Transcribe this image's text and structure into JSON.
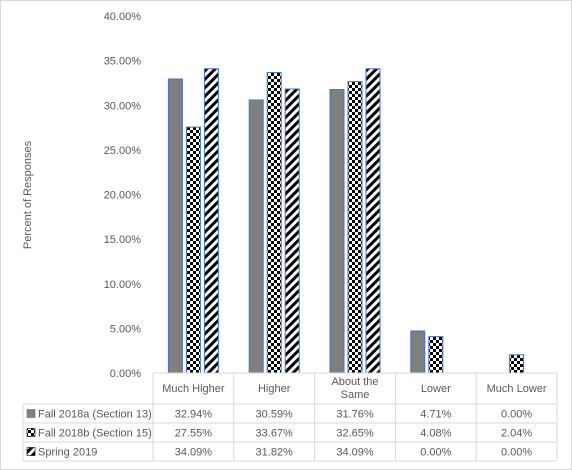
{
  "chart_data": {
    "type": "bar",
    "title": "",
    "xlabel": "",
    "ylabel": "Percent of Responses",
    "ylim": [
      0,
      40
    ],
    "yticks": [
      "0.00%",
      "5.00%",
      "10.00%",
      "15.00%",
      "20.00%",
      "25.00%",
      "30.00%",
      "35.00%",
      "40.00%"
    ],
    "grid": false,
    "legend": "data-table-left",
    "categories": [
      "Much Higher",
      "Higher",
      "About the Same",
      "Lower",
      "Much Lower"
    ],
    "series": [
      {
        "name": "Fall 2018a (Section 13)",
        "values": [
          32.94,
          30.59,
          31.76,
          4.71,
          0.0
        ],
        "labels": [
          "32.94%",
          "30.59%",
          "31.76%",
          "4.71%",
          "0.00%"
        ],
        "fill": "solid-gray",
        "color": "#7f7f7f"
      },
      {
        "name": "Fall 2018b (Section 15)",
        "values": [
          27.55,
          33.67,
          32.65,
          4.08,
          2.04
        ],
        "labels": [
          "27.55%",
          "33.67%",
          "32.65%",
          "4.08%",
          "2.04%"
        ],
        "fill": "checkerboard",
        "color": "#000000"
      },
      {
        "name": "Spring 2019",
        "values": [
          34.09,
          31.82,
          34.09,
          0.0,
          0.0
        ],
        "labels": [
          "34.09%",
          "31.82%",
          "34.09%",
          "0.00%",
          "0.00%"
        ],
        "fill": "diagonal-stripes",
        "color": "#000000"
      }
    ]
  },
  "colors": {
    "bar_outline": "#4472c4",
    "axis": "#d9d9d9",
    "text": "#595959"
  }
}
